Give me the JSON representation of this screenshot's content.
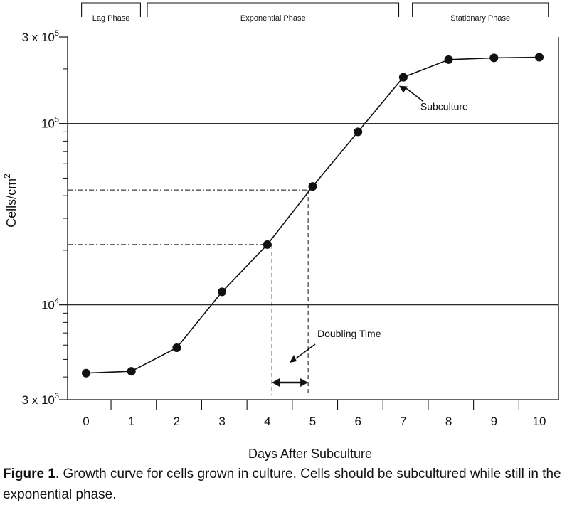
{
  "chart_data": {
    "type": "line",
    "title": "",
    "xlabel": "Days After Subculture",
    "ylabel_main": "Cells/cm",
    "ylabel_sup": "2",
    "y_scale": "log",
    "xlim": [
      0,
      10
    ],
    "ylim": [
      3000,
      300000
    ],
    "x_ticks": [
      0,
      1,
      2,
      3,
      4,
      5,
      6,
      7,
      8,
      9,
      10
    ],
    "y_ticks": [
      {
        "value": 3000,
        "base": "3 x 10",
        "exp": "3"
      },
      {
        "value": 10000,
        "base": "10",
        "exp": "4"
      },
      {
        "value": 100000,
        "base": "10",
        "exp": "5"
      },
      {
        "value": 300000,
        "base": "3 x 10",
        "exp": "5"
      }
    ],
    "grid": "horizontal lines at 10^4 and 10^5",
    "series": [
      {
        "x": [
          0,
          1,
          2,
          3,
          4,
          5,
          6,
          7,
          8,
          9,
          10
        ],
        "y": [
          4200,
          4300,
          5800,
          11800,
          21500,
          45000,
          90000,
          180000,
          225000,
          230000,
          232000
        ]
      }
    ],
    "phases": [
      {
        "label": "Lag Phase",
        "x_start": -0.1,
        "x_end": 1.2
      },
      {
        "label": "Exponential Phase",
        "x_start": 1.35,
        "x_end": 6.9
      },
      {
        "label": "Stationary Phase",
        "x_start": 7.2,
        "x_end": 10.2
      }
    ],
    "annotations": [
      {
        "text": "Subculture"
      },
      {
        "text": "Doubling Time"
      }
    ],
    "doubling_time": {
      "x_start": 4.1,
      "x_end": 4.9,
      "y_low": 21500,
      "y_high": 43000
    }
  },
  "caption": {
    "label": "Figure 1",
    "text": ". Growth curve for cells grown in culture.  Cells should be subcultured while still in the exponential phase."
  }
}
